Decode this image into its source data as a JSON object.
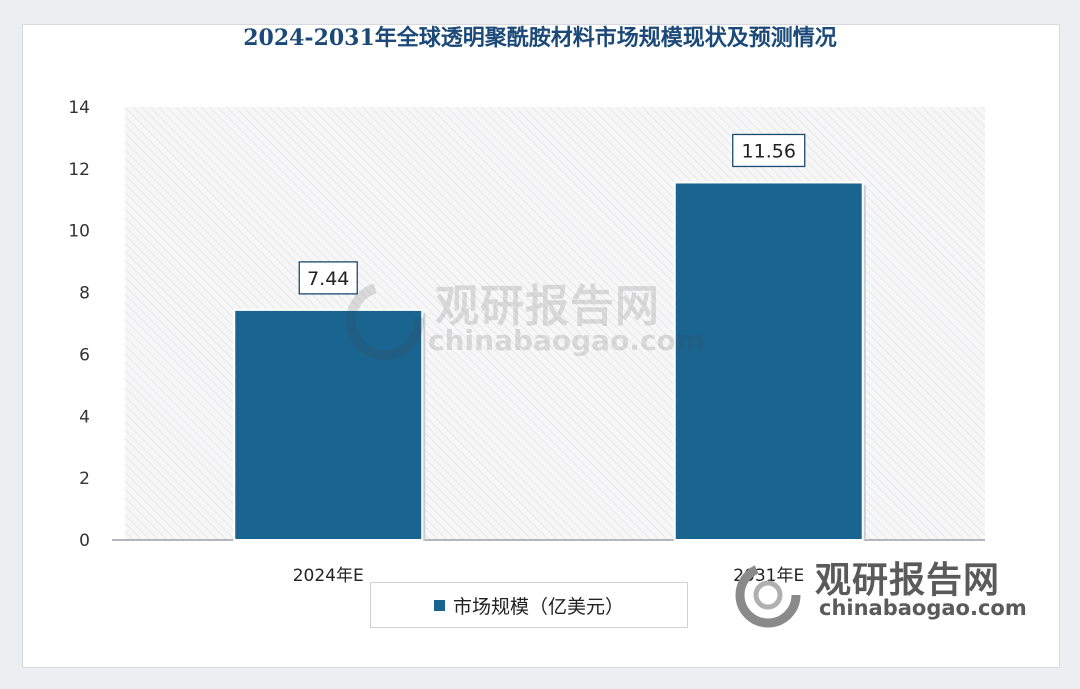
{
  "chart_data": {
    "type": "bar",
    "title": "2024-2031年全球透明聚酰胺材料市场规模现状及预测情况",
    "categories": [
      "2024年E",
      "2031年E"
    ],
    "series": [
      {
        "name": "市场规模（亿美元）",
        "values": [
          7.44,
          11.56
        ]
      }
    ],
    "value_labels": [
      "7.44",
      "11.56"
    ],
    "yticks": [
      "0",
      "2",
      "4",
      "6",
      "8",
      "10",
      "12",
      "14"
    ],
    "ylim": [
      0,
      14
    ],
    "xlabel": "",
    "ylabel": "",
    "grid": false,
    "legend_position": "bottom",
    "bar_color": "#1a6590"
  },
  "watermark": {
    "cn": "观研报告网",
    "en": "chinabaogao.com"
  }
}
